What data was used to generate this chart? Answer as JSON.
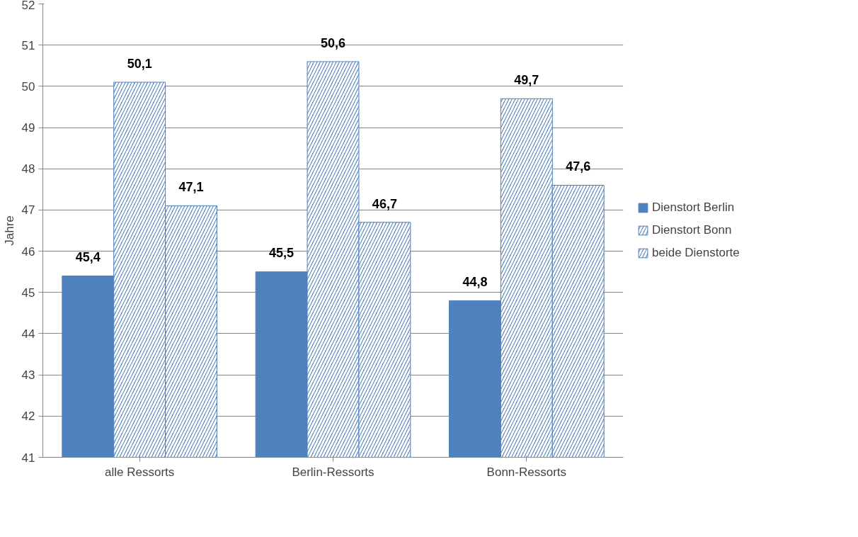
{
  "chart_data": {
    "type": "bar",
    "ylabel": "Jahre",
    "categories": [
      "alle Ressorts",
      "Berlin-Ressorts",
      "Bonn-Ressorts"
    ],
    "series": [
      {
        "name": "Dienstort Berlin",
        "color": "#4f81bd",
        "values": [
          45.4,
          45.5,
          44.8
        ],
        "value_labels": [
          "45,4",
          "45,5",
          "44,8"
        ]
      },
      {
        "name": "Dienstort Bonn",
        "color": "#4f81bd",
        "values": [
          50.1,
          50.6,
          49.7
        ],
        "value_labels": [
          "50,1",
          "50,6",
          "49,7"
        ]
      },
      {
        "name": "beide Dienstorte",
        "color": "#4f81bd",
        "values": [
          47.1,
          46.7,
          47.6
        ],
        "value_labels": [
          "47,1",
          "46,7",
          "47,6"
        ]
      }
    ],
    "ylim": [
      41,
      52
    ],
    "yticks": [
      41,
      42,
      43,
      44,
      45,
      46,
      47,
      48,
      49,
      50,
      51,
      52
    ],
    "grid": "y",
    "legend": "right"
  }
}
